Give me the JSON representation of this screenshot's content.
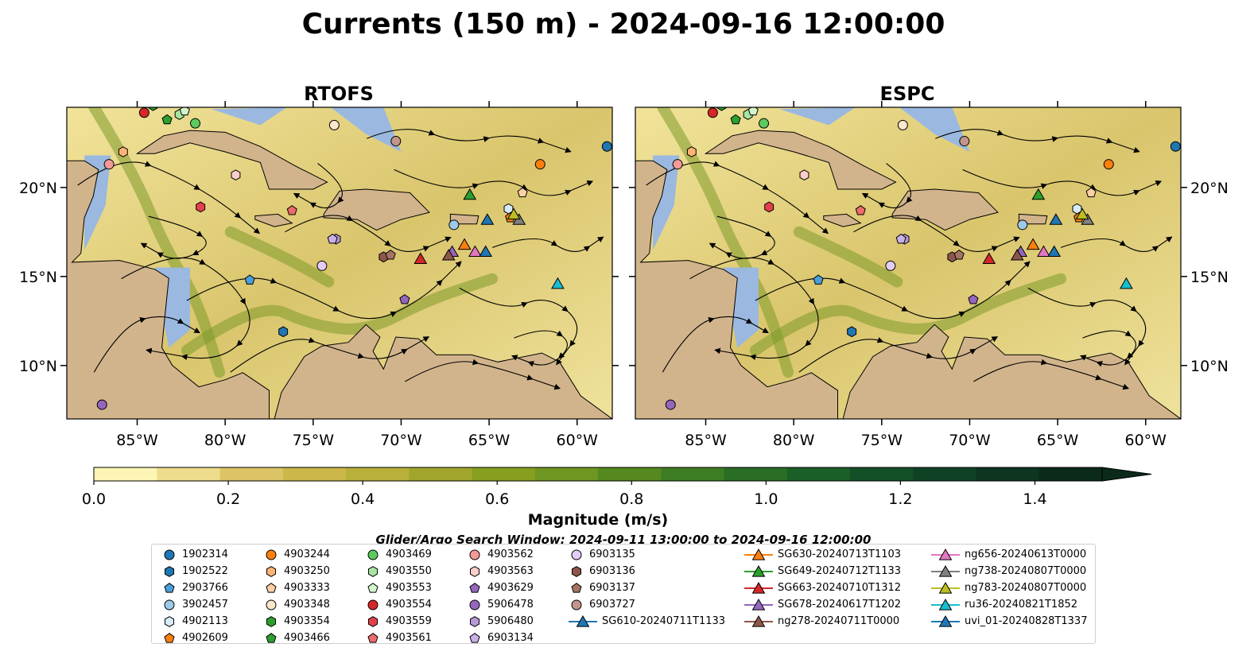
{
  "figure": {
    "title": "Currents (150 m) - 2024-09-16 12:00:00",
    "search_window": "Glider/Argo Search Window: 2024-09-11 13:00:00 to 2024-09-16 12:00:00"
  },
  "chart_data": [
    {
      "type": "map",
      "title": "RTOFS",
      "lon_range": [
        -89,
        -58
      ],
      "lat_range": [
        7,
        24.5
      ],
      "x_ticks": [
        "85°W",
        "80°W",
        "75°W",
        "70°W",
        "65°W",
        "60°W"
      ],
      "x_tick_values": [
        -85,
        -80,
        -75,
        -70,
        -65,
        -60
      ],
      "y_ticks": [
        "10°N",
        "15°N",
        "20°N"
      ],
      "y_tick_values": [
        10,
        15,
        20
      ],
      "variable": "current speed at 150 m (m/s) with streamlines",
      "speed_max_visual": 1.0,
      "land_color": "#d2b48c",
      "ocean_color": "#9ab8e0"
    },
    {
      "type": "map",
      "title": "ESPC",
      "lon_range": [
        -89,
        -58
      ],
      "lat_range": [
        7,
        24.5
      ],
      "x_ticks": [
        "85°W",
        "80°W",
        "75°W",
        "70°W",
        "65°W",
        "60°W"
      ],
      "x_tick_values": [
        -85,
        -80,
        -75,
        -70,
        -65,
        -60
      ],
      "y_ticks": [
        "10°N",
        "15°N",
        "20°N"
      ],
      "y_tick_values": [
        10,
        15,
        20
      ],
      "variable": "current speed at 150 m (m/s) with streamlines",
      "speed_max_visual": 1.0,
      "land_color": "#d2b48c",
      "ocean_color": "#9ab8e0"
    }
  ],
  "colorbar": {
    "label": "Magnitude (m/s)",
    "ticks": [
      "0.0",
      "0.2",
      "0.4",
      "0.6",
      "0.8",
      "1.0",
      "1.2",
      "1.4"
    ],
    "tick_values": [
      0,
      0.2,
      0.4,
      0.6,
      0.8,
      1.0,
      1.2,
      1.4
    ],
    "range": [
      0,
      1.5
    ],
    "extend": "max",
    "colors": [
      "#fdf5b5",
      "#eedc8d",
      "#dcc366",
      "#ccb84a",
      "#b9b03a",
      "#a2a52c",
      "#879f1e",
      "#6e9620",
      "#55891f",
      "#3d7c22",
      "#2a6d25",
      "#1b5f28",
      "#134f27",
      "#0f4225",
      "#0d3520",
      "#0b2a1a"
    ]
  },
  "markers": [
    {
      "label": "1902314",
      "shape": "circle",
      "color": "#1f77b4",
      "lon": -58.3,
      "lat": 22.3
    },
    {
      "label": "1902522",
      "shape": "hexagon",
      "color": "#1f77b4",
      "lon": -76.7,
      "lat": 11.9
    },
    {
      "label": "2903766",
      "shape": "pentagon",
      "color": "#4a9fd9",
      "lon": -78.6,
      "lat": 14.8
    },
    {
      "label": "3902457",
      "shape": "circle",
      "color": "#9ecae9",
      "lon": -67.0,
      "lat": 17.9
    },
    {
      "label": "4902113",
      "shape": "hexagon",
      "color": "#d6eaf8",
      "lon": -63.9,
      "lat": 18.8
    },
    {
      "label": "4902609",
      "shape": "pentagon",
      "color": "#ff7f0e",
      "lon": -63.8,
      "lat": 18.3
    },
    {
      "label": "4903244",
      "shape": "circle",
      "color": "#ff7f0e",
      "lon": -62.1,
      "lat": 21.3
    },
    {
      "label": "4903250",
      "shape": "hexagon",
      "color": "#ffb374",
      "lon": -85.8,
      "lat": 22.0
    },
    {
      "label": "4903333",
      "shape": "pentagon",
      "color": "#fdcfa4",
      "lon": -63.1,
      "lat": 19.7
    },
    {
      "label": "4903348",
      "shape": "circle",
      "color": "#fee5cc",
      "lon": -73.8,
      "lat": 23.5
    },
    {
      "label": "4903354",
      "shape": "hexagon",
      "color": "#2ca02c",
      "lon": -84.1,
      "lat": 24.6
    },
    {
      "label": "4903466",
      "shape": "pentagon",
      "color": "#2ca02c",
      "lon": -83.3,
      "lat": 23.8
    },
    {
      "label": "4903469",
      "shape": "circle",
      "color": "#5ec95e",
      "lon": -81.7,
      "lat": 23.6
    },
    {
      "label": "4903550",
      "shape": "hexagon",
      "color": "#a8e6a0",
      "lon": -82.6,
      "lat": 24.1
    },
    {
      "label": "4903553",
      "shape": "pentagon",
      "color": "#d4f5cc",
      "lon": -82.3,
      "lat": 24.3
    },
    {
      "label": "4903554",
      "shape": "circle",
      "color": "#d62728",
      "lon": -84.6,
      "lat": 24.2
    },
    {
      "label": "4903559",
      "shape": "hexagon",
      "color": "#e5404a",
      "lon": -81.4,
      "lat": 18.9
    },
    {
      "label": "4903561",
      "shape": "pentagon",
      "color": "#ec6b6b",
      "lon": -76.2,
      "lat": 18.7
    },
    {
      "label": "4903562",
      "shape": "circle",
      "color": "#f49a96",
      "lon": -86.6,
      "lat": 21.3
    },
    {
      "label": "4903563",
      "shape": "hexagon",
      "color": "#fbcdcb",
      "lon": -79.4,
      "lat": 20.7
    },
    {
      "label": "4903629",
      "shape": "pentagon",
      "color": "#9467bd",
      "lon": -69.8,
      "lat": 13.7
    },
    {
      "label": "5906478",
      "shape": "circle",
      "color": "#9467bd",
      "lon": -87.0,
      "lat": 7.8
    },
    {
      "label": "5906480",
      "shape": "hexagon",
      "color": "#b798d6",
      "lon": -73.7,
      "lat": 17.1
    },
    {
      "label": "6903134",
      "shape": "pentagon",
      "color": "#c9b1e6",
      "lon": -73.9,
      "lat": 17.1
    },
    {
      "label": "6903135",
      "shape": "circle",
      "color": "#e3ccf5",
      "lon": -74.5,
      "lat": 15.6
    },
    {
      "label": "6903136",
      "shape": "hexagon",
      "color": "#8c564b",
      "lon": -71.0,
      "lat": 16.1
    },
    {
      "label": "6903137",
      "shape": "pentagon",
      "color": "#a57464",
      "lon": -70.6,
      "lat": 16.2
    },
    {
      "label": "6903727",
      "shape": "circle",
      "color": "#c4968a",
      "lon": -70.3,
      "lat": 22.6
    },
    {
      "label": "SG610-20240711T1133",
      "shape": "triangle",
      "color": "#1f77b4",
      "lon": -65.1,
      "lat": 18.2
    },
    {
      "label": "SG630-20240713T1103",
      "shape": "triangle",
      "color": "#ff7f0e",
      "lon": -66.4,
      "lat": 16.8
    },
    {
      "label": "SG649-20240712T1133",
      "shape": "triangle",
      "color": "#2ca02c",
      "lon": -66.1,
      "lat": 19.6
    },
    {
      "label": "SG663-20240710T1312",
      "shape": "triangle",
      "color": "#d62728",
      "lon": -68.9,
      "lat": 16.0
    },
    {
      "label": "SG678-20240617T1202",
      "shape": "triangle",
      "color": "#9467bd",
      "lon": -67.1,
      "lat": 16.4
    },
    {
      "label": "ng278-20240711T0000",
      "shape": "triangle",
      "color": "#8c564b",
      "lon": -67.3,
      "lat": 16.2
    },
    {
      "label": "ng656-20240613T0000",
      "shape": "triangle",
      "color": "#e377c2",
      "lon": -65.8,
      "lat": 16.4
    },
    {
      "label": "ng738-20240807T0000",
      "shape": "triangle",
      "color": "#7f7f7f",
      "lon": -63.3,
      "lat": 18.2
    },
    {
      "label": "ng783-20240807T0000",
      "shape": "triangle",
      "color": "#bcbd22",
      "lon": -63.6,
      "lat": 18.5
    },
    {
      "label": "ru36-20240821T1852",
      "shape": "triangle",
      "color": "#17becf",
      "lon": -61.1,
      "lat": 14.6
    },
    {
      "label": "uvi_01-20240828T1337",
      "shape": "triangle",
      "color": "#1f77b4",
      "lon": -65.2,
      "lat": 16.4
    }
  ]
}
